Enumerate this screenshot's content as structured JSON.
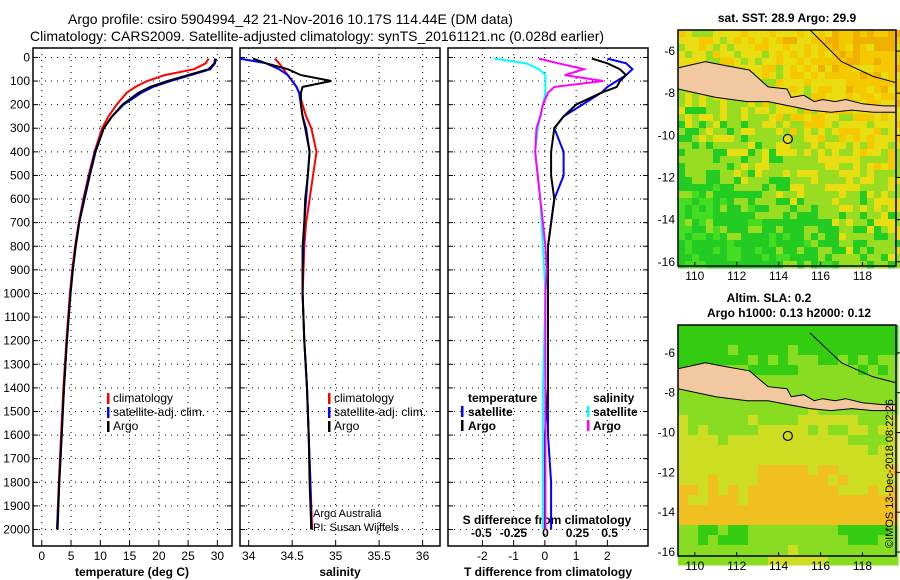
{
  "header": {
    "line1": "Argo profile: csiro 5904994_42 21-Nov-2016 10.17S 114.44E (DM data)",
    "line2": "Climatology: CARS2009. Satellite-adjusted climatology: synTS_20161121.nc (0.028d earlier)"
  },
  "colors": {
    "climatology": "#ff0000",
    "satellite": "#0000ff",
    "argo": "#000000",
    "sal_satellite": "#00ffff",
    "sal_argo": "#ff00ff",
    "land": "#f2c8a0"
  },
  "chart_data": [
    {
      "type": "line",
      "id": "temperature",
      "xlabel": "temperature (deg C)",
      "ylabel": "depth",
      "xlim": [
        -1.5,
        32.5
      ],
      "ylim": [
        2070,
        -40
      ],
      "xticks": [
        0,
        5,
        10,
        15,
        20,
        25,
        30
      ],
      "yticks": [
        0,
        100,
        200,
        300,
        400,
        500,
        600,
        700,
        800,
        900,
        1000,
        1100,
        1200,
        1300,
        1400,
        1500,
        1600,
        1700,
        1800,
        1900,
        2000
      ],
      "depth": [
        5,
        25,
        50,
        75,
        100,
        125,
        150,
        200,
        250,
        300,
        400,
        500,
        600,
        700,
        800,
        900,
        1000,
        1200,
        1400,
        1600,
        1800,
        2000
      ],
      "series": [
        {
          "name": "climatology",
          "color": "#ff0000",
          "values": [
            28.5,
            28.0,
            26,
            21,
            18,
            16,
            14.5,
            12.8,
            11.4,
            10.3,
            9.0,
            8.0,
            7.1,
            6.3,
            5.7,
            5.2,
            4.8,
            4.2,
            3.7,
            3.3,
            2.9,
            2.6
          ]
        },
        {
          "name": "satellite-adj. clim.",
          "color": "#0000ff",
          "values": [
            29.8,
            29.6,
            28.8,
            25.5,
            22,
            19,
            17,
            14,
            12,
            10.6,
            9.1,
            8.1,
            7.2,
            6.4,
            5.8,
            5.3,
            4.9,
            4.3,
            3.8,
            3.4,
            3.0,
            2.6
          ]
        },
        {
          "name": "Argo",
          "color": "#000000",
          "values": [
            29.6,
            29.5,
            28.5,
            25,
            21.5,
            18.5,
            16.5,
            13.8,
            12,
            10.6,
            9.2,
            8.2,
            7.3,
            6.4,
            5.8,
            5.3,
            4.9,
            4.3,
            3.8,
            3.4,
            3.0,
            2.7
          ]
        }
      ],
      "legend": [
        "climatology",
        "satellite-adj. clim.",
        "Argo"
      ]
    },
    {
      "type": "line",
      "id": "salinity",
      "xlabel": "salinity",
      "xlim": [
        33.9,
        36.2
      ],
      "ylim": [
        2070,
        -40
      ],
      "xticks": [
        34,
        34.5,
        35,
        35.5,
        36
      ],
      "depth": [
        5,
        25,
        50,
        75,
        100,
        125,
        150,
        200,
        250,
        300,
        400,
        500,
        600,
        700,
        800,
        900,
        1000,
        1200,
        1400,
        1600,
        1800,
        2000
      ],
      "series": [
        {
          "name": "climatology",
          "color": "#ff0000",
          "values": [
            34.3,
            34.35,
            34.4,
            34.45,
            34.5,
            34.55,
            34.58,
            34.62,
            34.66,
            34.72,
            34.78,
            34.74,
            34.7,
            34.66,
            34.64,
            34.63,
            34.62,
            34.64,
            34.67,
            34.69,
            34.71,
            34.73
          ]
        },
        {
          "name": "satellite-adj. clim.",
          "color": "#0000ff",
          "values": [
            33.9,
            34.2,
            34.35,
            34.45,
            34.5,
            34.55,
            34.58,
            34.6,
            34.62,
            34.66,
            34.7,
            34.68,
            34.66,
            34.64,
            34.63,
            34.62,
            34.62,
            34.64,
            34.67,
            34.69,
            34.71,
            34.72
          ]
        },
        {
          "name": "Argo",
          "color": "#000000",
          "values": [
            34.05,
            34.2,
            34.45,
            34.6,
            34.95,
            34.62,
            34.6,
            34.6,
            34.62,
            34.65,
            34.7,
            34.68,
            34.65,
            34.64,
            34.62,
            34.62,
            34.62,
            34.64,
            34.67,
            34.69,
            34.7,
            34.72
          ]
        }
      ],
      "legend": [
        "climatology",
        "satellite-adj. clim.",
        "Argo"
      ],
      "credit": [
        "Argo Australia",
        "PI: Susan Wijffels"
      ]
    },
    {
      "type": "line",
      "id": "difference",
      "xlabel": "T difference from climatology",
      "x2label": "S difference from climatology",
      "xlim": [
        -3.1,
        3.3
      ],
      "x2lim": [
        -0.76,
        0.8
      ],
      "ylim": [
        2070,
        -40
      ],
      "xticks": [
        -2,
        -1,
        0,
        1,
        2
      ],
      "x2ticks": [
        "-0.5",
        "-0.25",
        "0",
        "0.25",
        "0.5"
      ],
      "x2tick_values": [
        -0.5,
        -0.25,
        0,
        0.25,
        0.5
      ],
      "depth": [
        5,
        25,
        50,
        75,
        100,
        125,
        150,
        200,
        250,
        300,
        400,
        500,
        600,
        700,
        800,
        900,
        1000,
        1200,
        1400,
        1600,
        1800,
        2000
      ],
      "series": [
        {
          "name": "temperature satellite",
          "axis": "T",
          "color": "#0000ff",
          "values": [
            2.0,
            2.6,
            2.8,
            2.6,
            2.3,
            2.0,
            1.8,
            1.2,
            0.6,
            0.3,
            0.6,
            0.6,
            0.3,
            0.2,
            0.1,
            0.1,
            0.1,
            0.1,
            0.1,
            0.1,
            0.2,
            0.2
          ]
        },
        {
          "name": "temperature Argo",
          "axis": "T",
          "color": "#000000",
          "values": [
            1.5,
            2.0,
            2.4,
            2.6,
            2.4,
            2.3,
            1.8,
            1.0,
            0.6,
            0.3,
            0.2,
            0.2,
            0.3,
            0.2,
            0.1,
            0.1,
            0.1,
            0.1,
            0.1,
            0.0,
            0.0,
            0.0
          ]
        },
        {
          "name": "salinity satellite",
          "axis": "S",
          "color": "#00ffff",
          "values": [
            -0.4,
            -0.15,
            -0.05,
            0,
            0,
            0,
            0,
            -0.02,
            -0.04,
            -0.06,
            -0.08,
            -0.06,
            -0.04,
            -0.03,
            -0.02,
            -0.01,
            0,
            -0.01,
            -0.02,
            -0.02,
            -0.02,
            -0.02
          ]
        },
        {
          "name": "salinity Argo",
          "axis": "S",
          "color": "#ff00ff",
          "values": [
            -0.05,
            0.1,
            0.3,
            0.15,
            0.45,
            0.07,
            0.02,
            -0.02,
            -0.04,
            -0.07,
            -0.08,
            -0.06,
            -0.04,
            -0.02,
            0,
            0.01,
            0.0,
            0.0,
            0.0,
            0.0,
            0.0,
            0.0
          ]
        }
      ],
      "legend": {
        "temperature_title": "temperature",
        "salinity_title": "salinity",
        "satellite": "satellite",
        "argo": "Argo"
      }
    },
    {
      "type": "heatmap",
      "id": "sst-map",
      "title": "sat. SST: 28.9 Argo: 29.9",
      "xticks": [
        110,
        112,
        114,
        116,
        118
      ],
      "yticks": [
        -6,
        -8,
        -10,
        -12,
        -14,
        -16
      ],
      "xlim": [
        109.2,
        119.6
      ],
      "ylim": [
        -5.0,
        -16.2
      ],
      "marker": [
        114.44,
        -10.17
      ]
    },
    {
      "type": "heatmap",
      "id": "sla-map",
      "title": "Altim. SLA: 0.2",
      "subtitle": "Argo h1000: 0.13 h2000: 0.12",
      "xticks": [
        110,
        112,
        114,
        116,
        118
      ],
      "yticks": [
        -6,
        -8,
        -10,
        -12,
        -14,
        -16
      ],
      "xlim": [
        109.2,
        119.6
      ],
      "ylim": [
        -4.6,
        -16.2
      ],
      "marker": [
        114.44,
        -10.17
      ]
    }
  ],
  "footer": {
    "copyright": "©IMOS 13-Dec-2018 08:22:26"
  }
}
